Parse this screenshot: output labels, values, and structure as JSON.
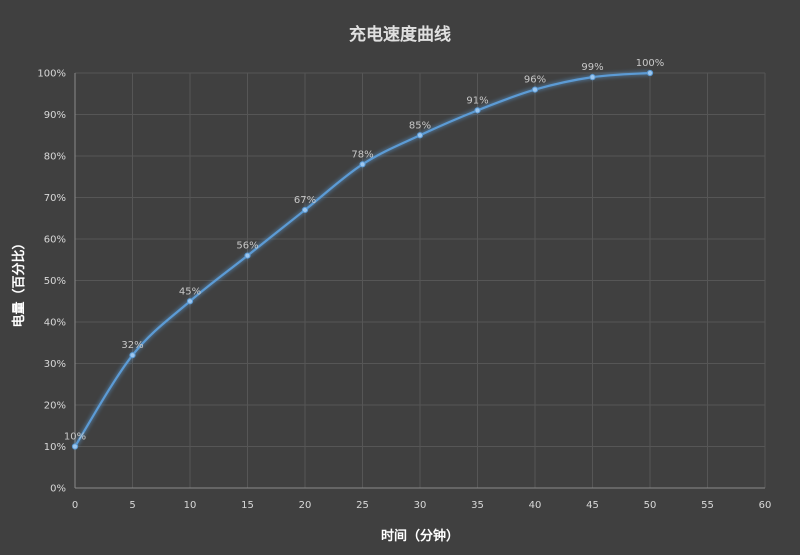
{
  "chart_data": {
    "type": "line",
    "title": "充电速度曲线",
    "xlabel": "时间（分钟）",
    "ylabel": "电量（百分比）",
    "xlim": [
      0,
      60
    ],
    "ylim": [
      0,
      100
    ],
    "x_ticks": [
      "0",
      "5",
      "10",
      "15",
      "20",
      "25",
      "30",
      "35",
      "40",
      "45",
      "50",
      "55",
      "60"
    ],
    "y_ticks": [
      "0%",
      "10%",
      "20%",
      "30%",
      "40%",
      "50%",
      "60%",
      "70%",
      "80%",
      "90%",
      "100%"
    ],
    "grid": true,
    "smooth": true,
    "series": [
      {
        "x": [
          0,
          5,
          10,
          15,
          20,
          25,
          30,
          35,
          40,
          45,
          50
        ],
        "values": [
          10,
          32,
          45,
          56,
          67,
          78,
          85,
          91,
          96,
          99,
          100
        ],
        "labels": [
          "10%",
          "32%",
          "45%",
          "56%",
          "67%",
          "78%",
          "85%",
          "91%",
          "96%",
          "99%",
          "100%"
        ],
        "color": "#5b9bd5"
      }
    ]
  }
}
